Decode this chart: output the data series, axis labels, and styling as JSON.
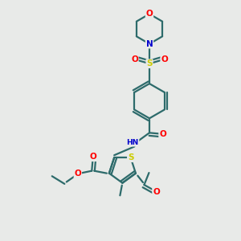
{
  "bg_color": "#e8eae8",
  "bond_color": "#2d6b6b",
  "bond_width": 1.6,
  "atom_colors": {
    "O": "#ff0000",
    "N": "#0000cc",
    "S": "#cccc00",
    "C": "#2d6b6b"
  },
  "font_size": 7.5
}
